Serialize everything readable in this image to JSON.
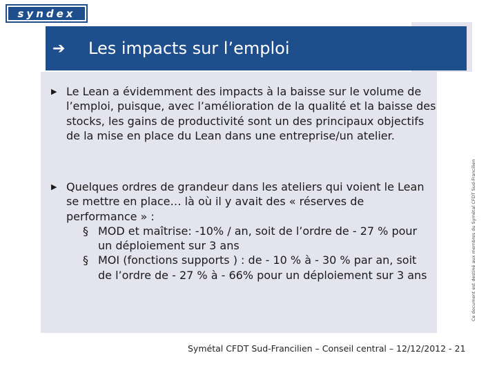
{
  "logo": {
    "text": "syndex"
  },
  "header": {
    "arrow_icon": "arrow-right-icon",
    "title": "Les impacts sur l’emploi"
  },
  "bullets": [
    {
      "marker_icon": "triangle-bullet-icon",
      "text": "Le Lean a évidemment des impacts à la baisse sur le volume de l’emploi, puisque, avec l’amélioration de la qualité et la baisse des stocks, les gains de productivité sont un des principaux objectifs de la mise en place du Lean dans une entreprise/un atelier."
    },
    {
      "marker_icon": "triangle-bullet-icon",
      "text": "Quelques ordres de grandeur dans les ateliers qui voient le Lean se mettre en place… là où il y avait des « réserves de performance » :",
      "subitems": [
        "MOD et maîtrise: -10% / an, soit de l’ordre de - 27 % pour un déploiement sur 3 ans",
        "MOI (fonctions supports ) : de - 10 % à - 30 % par an, soit de l’ordre de - 27 % à - 66% pour un déploiement sur 3 ans"
      ]
    }
  ],
  "side_note": "Ce document est destiné aux membres du Symétal CFDT Sud-Francilien",
  "footer": "Symétal CFDT Sud-Francilien – Conseil central – 12/12/2012 - 21"
}
